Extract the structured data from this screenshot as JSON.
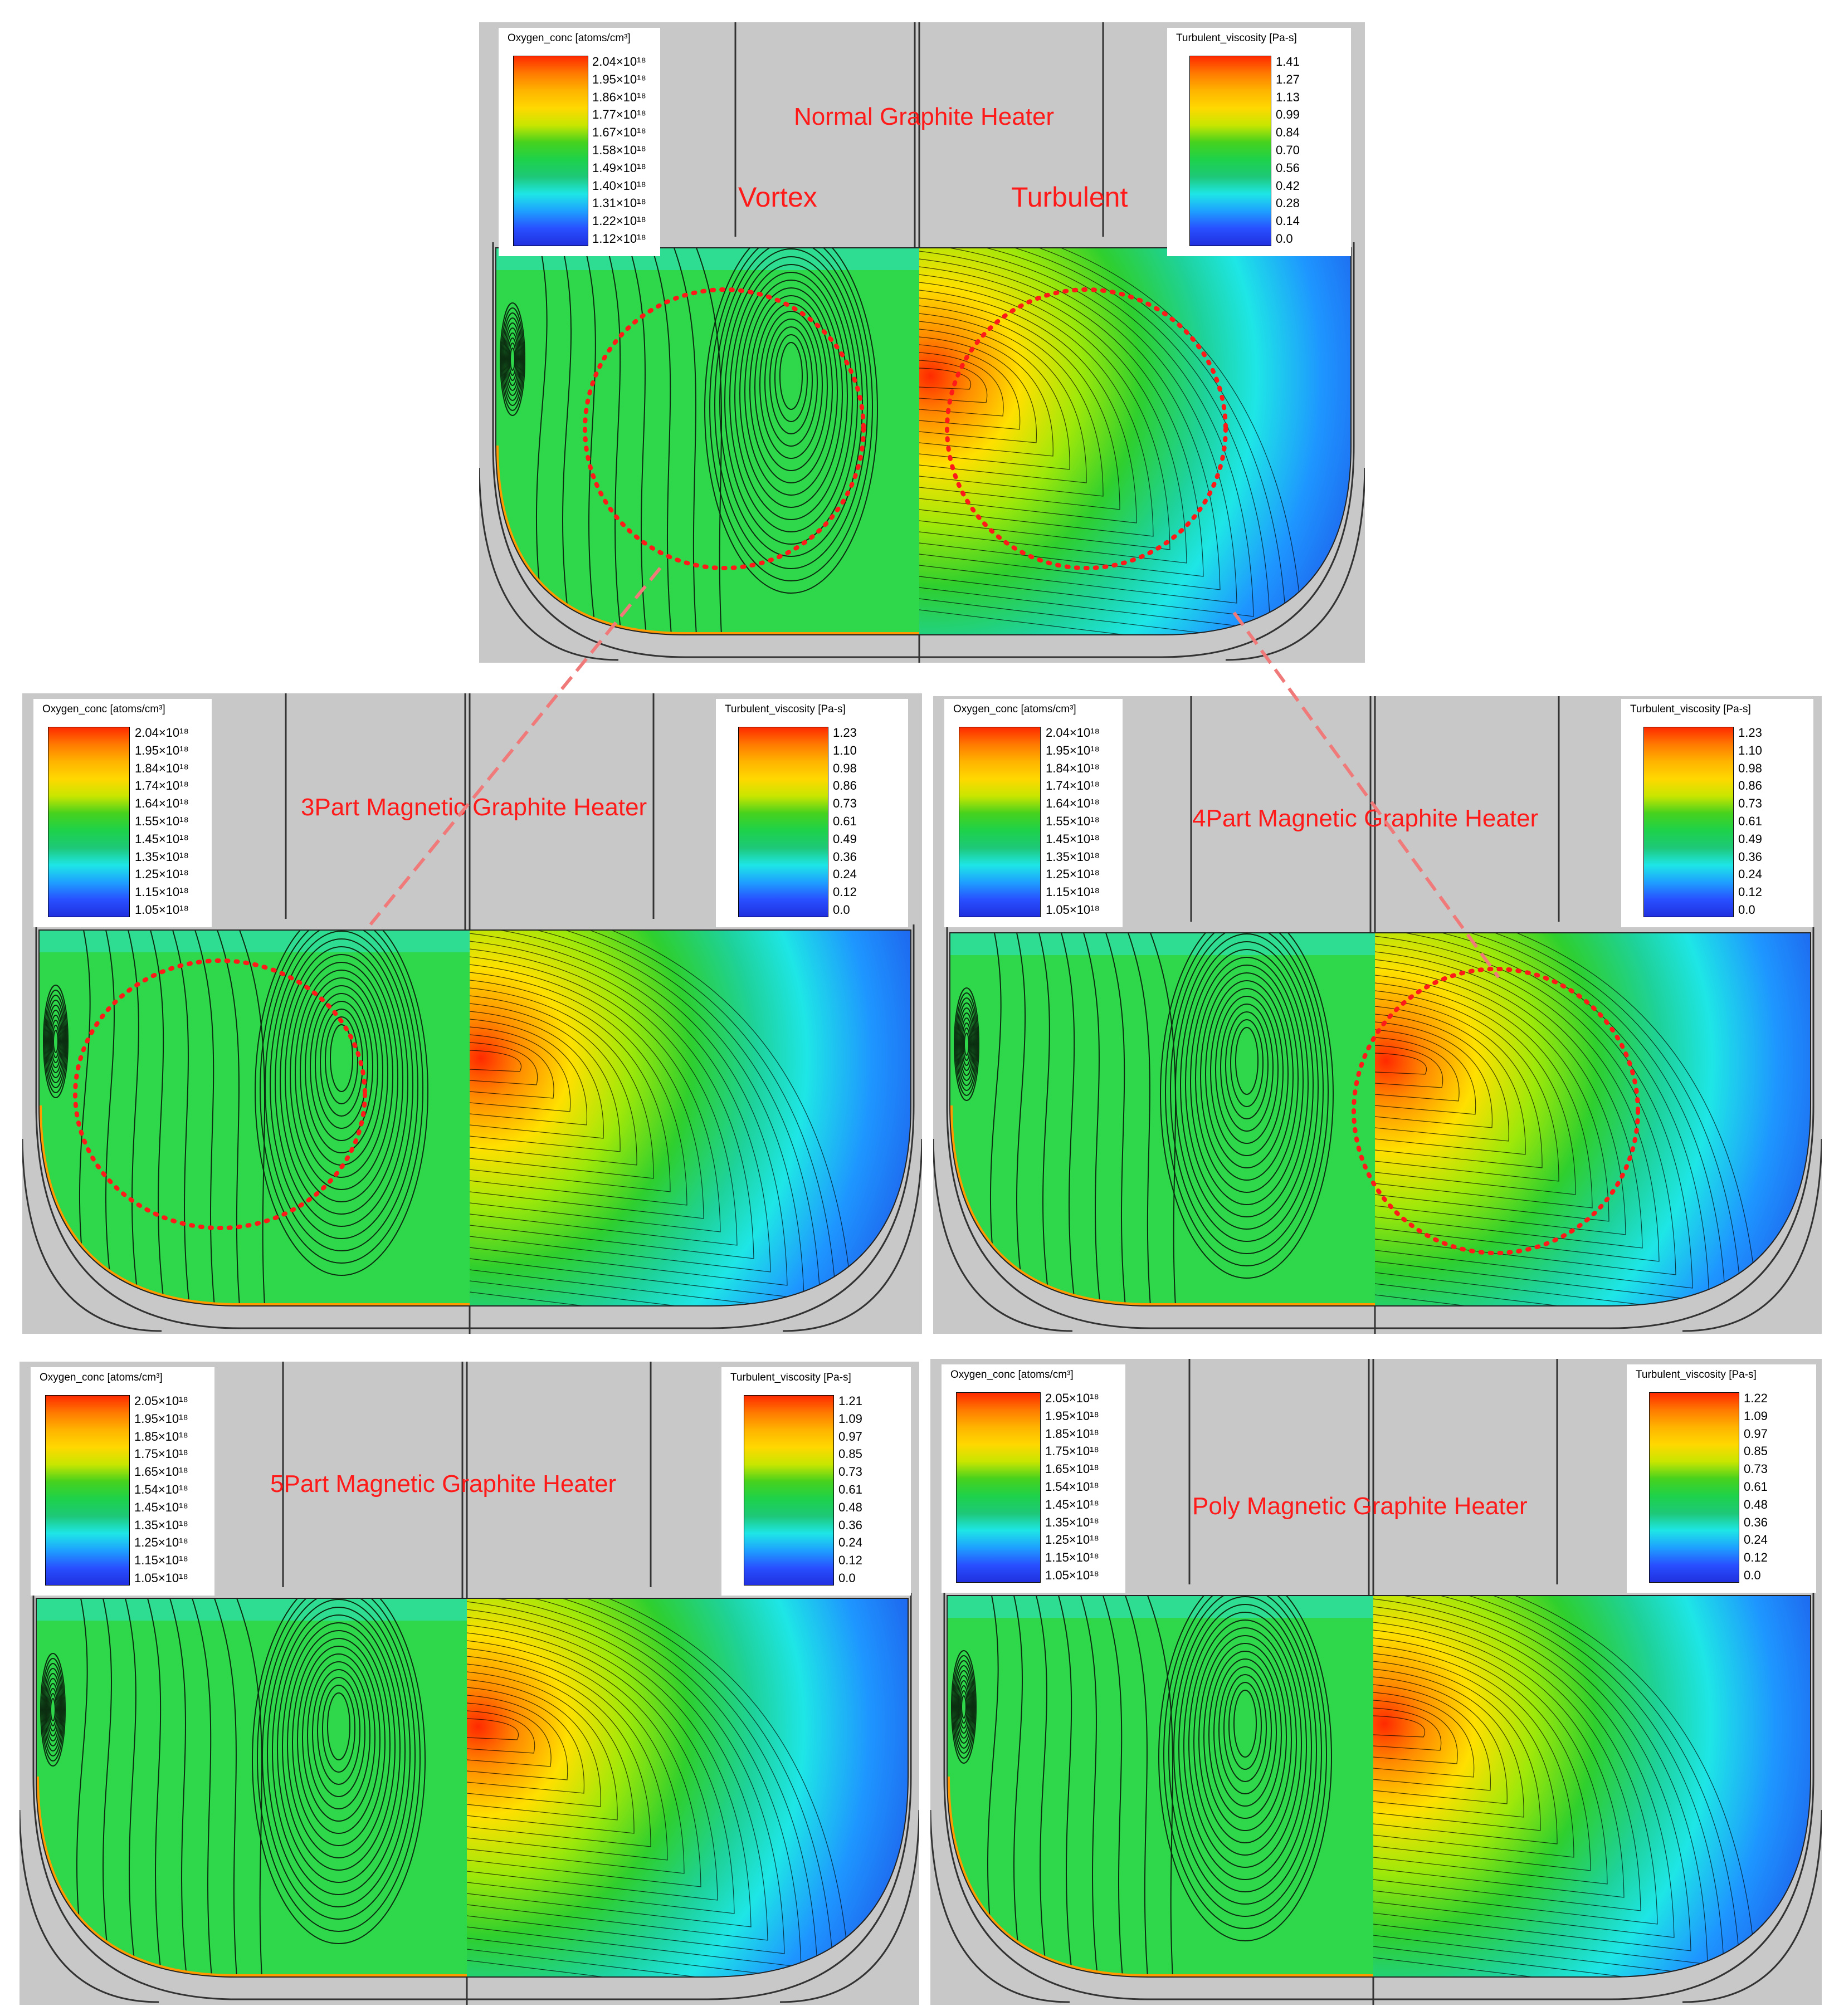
{
  "colors": {
    "highlight": "#ff1a1a",
    "connector": "#f07a7a",
    "gray_bg": "#c8c8c8",
    "melt_low": "#1f3de0",
    "melt_high": "#ff2a00"
  },
  "panels": [
    {
      "id": "normal",
      "title": "Normal Graphite Heater",
      "labels": {
        "left": "Vortex",
        "right": "Turbulent"
      },
      "oxygen_legend": {
        "title": "Oxygen_conc [atoms/cm³]",
        "ticks": [
          "2.04×10¹⁸",
          "1.95×10¹⁸",
          "1.86×10¹⁸",
          "1.77×10¹⁸",
          "1.67×10¹⁸",
          "1.58×10¹⁸",
          "1.49×10¹⁸",
          "1.40×10¹⁸",
          "1.31×10¹⁸",
          "1.22×10¹⁸",
          "1.12×10¹⁸"
        ]
      },
      "viscosity_legend": {
        "title": "Turbulent_viscosity [Pa-s]",
        "ticks": [
          "1.41",
          "1.27",
          "1.13",
          "0.99",
          "0.84",
          "0.70",
          "0.56",
          "0.42",
          "0.28",
          "0.14",
          "0.0"
        ]
      },
      "circles": [
        "left",
        "right"
      ]
    },
    {
      "id": "part3",
      "title": "3Part Magnetic Graphite Heater",
      "oxygen_legend": {
        "title": "Oxygen_conc [atoms/cm³]",
        "ticks": [
          "2.04×10¹⁸",
          "1.95×10¹⁸",
          "1.84×10¹⁸",
          "1.74×10¹⁸",
          "1.64×10¹⁸",
          "1.55×10¹⁸",
          "1.45×10¹⁸",
          "1.35×10¹⁸",
          "1.25×10¹⁸",
          "1.15×10¹⁸",
          "1.05×10¹⁸"
        ]
      },
      "viscosity_legend": {
        "title": "Turbulent_viscosity [Pa-s]",
        "ticks": [
          "1.23",
          "1.10",
          "0.98",
          "0.86",
          "0.73",
          "0.61",
          "0.49",
          "0.36",
          "0.24",
          "0.12",
          "0.0"
        ]
      },
      "circles": [
        "left"
      ]
    },
    {
      "id": "part4",
      "title": "4Part Magnetic Graphite Heater",
      "oxygen_legend": {
        "title": "Oxygen_conc [atoms/cm³]",
        "ticks": [
          "2.04×10¹⁸",
          "1.95×10¹⁸",
          "1.84×10¹⁸",
          "1.74×10¹⁸",
          "1.64×10¹⁸",
          "1.55×10¹⁸",
          "1.45×10¹⁸",
          "1.35×10¹⁸",
          "1.25×10¹⁸",
          "1.15×10¹⁸",
          "1.05×10¹⁸"
        ]
      },
      "viscosity_legend": {
        "title": "Turbulent_viscosity [Pa-s]",
        "ticks": [
          "1.23",
          "1.10",
          "0.98",
          "0.86",
          "0.73",
          "0.61",
          "0.49",
          "0.36",
          "0.24",
          "0.12",
          "0.0"
        ]
      },
      "circles": [
        "right"
      ]
    },
    {
      "id": "part5",
      "title": "5Part Magnetic Graphite Heater",
      "oxygen_legend": {
        "title": "Oxygen_conc [atoms/cm³]",
        "ticks": [
          "2.05×10¹⁸",
          "1.95×10¹⁸",
          "1.85×10¹⁸",
          "1.75×10¹⁸",
          "1.65×10¹⁸",
          "1.54×10¹⁸",
          "1.45×10¹⁸",
          "1.35×10¹⁸",
          "1.25×10¹⁸",
          "1.15×10¹⁸",
          "1.05×10¹⁸"
        ]
      },
      "viscosity_legend": {
        "title": "Turbulent_viscosity [Pa-s]",
        "ticks": [
          "1.21",
          "1.09",
          "0.97",
          "0.85",
          "0.73",
          "0.61",
          "0.48",
          "0.36",
          "0.24",
          "0.12",
          "0.0"
        ]
      },
      "circles": []
    },
    {
      "id": "poly",
      "title": "Poly Magnetic Graphite Heater",
      "oxygen_legend": {
        "title": "Oxygen_conc [atoms/cm³]",
        "ticks": [
          "2.05×10¹⁸",
          "1.95×10¹⁸",
          "1.85×10¹⁸",
          "1.75×10¹⁸",
          "1.65×10¹⁸",
          "1.54×10¹⁸",
          "1.45×10¹⁸",
          "1.35×10¹⁸",
          "1.25×10¹⁸",
          "1.15×10¹⁸",
          "1.05×10¹⁸"
        ]
      },
      "viscosity_legend": {
        "title": "Turbulent_viscosity [Pa-s]",
        "ticks": [
          "1.22",
          "1.09",
          "0.97",
          "0.85",
          "0.73",
          "0.61",
          "0.48",
          "0.36",
          "0.24",
          "0.12",
          "0.0"
        ]
      },
      "circles": []
    }
  ]
}
